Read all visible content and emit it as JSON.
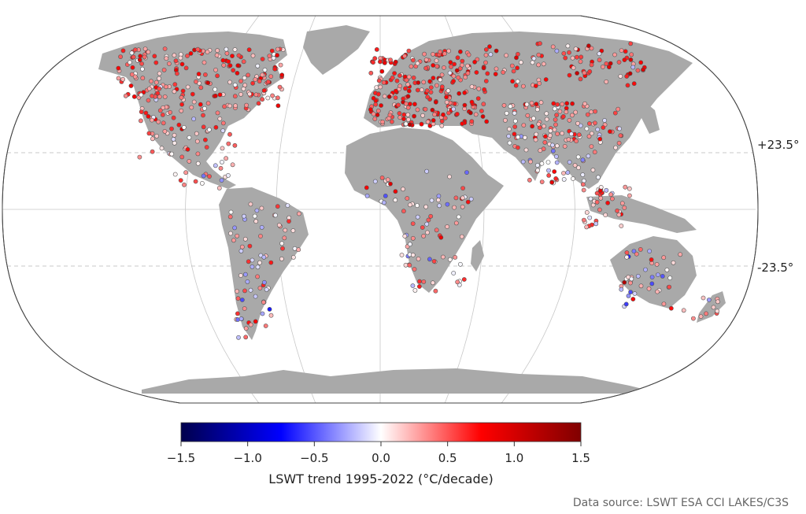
{
  "map": {
    "type": "point-map",
    "projection": "Robinson",
    "parallels": [
      "+23.5°",
      "-23.5°"
    ],
    "point_color_variable": "LSWT trend 1995-2022 (°C/decade)"
  },
  "colorbar": {
    "title": "LSWT trend 1995-2022 (°C/decade)",
    "min": -1.5,
    "max": 1.5,
    "ticks": [
      "−1.5",
      "−1.0",
      "−0.5",
      "0.0",
      "0.5",
      "1.0",
      "1.5"
    ],
    "colors": [
      "#00004c",
      "#0000ff",
      "#ffffff",
      "#ff0000",
      "#800000"
    ]
  },
  "source": "Data source: LSWT ESA CCI LAKES/C3S"
}
